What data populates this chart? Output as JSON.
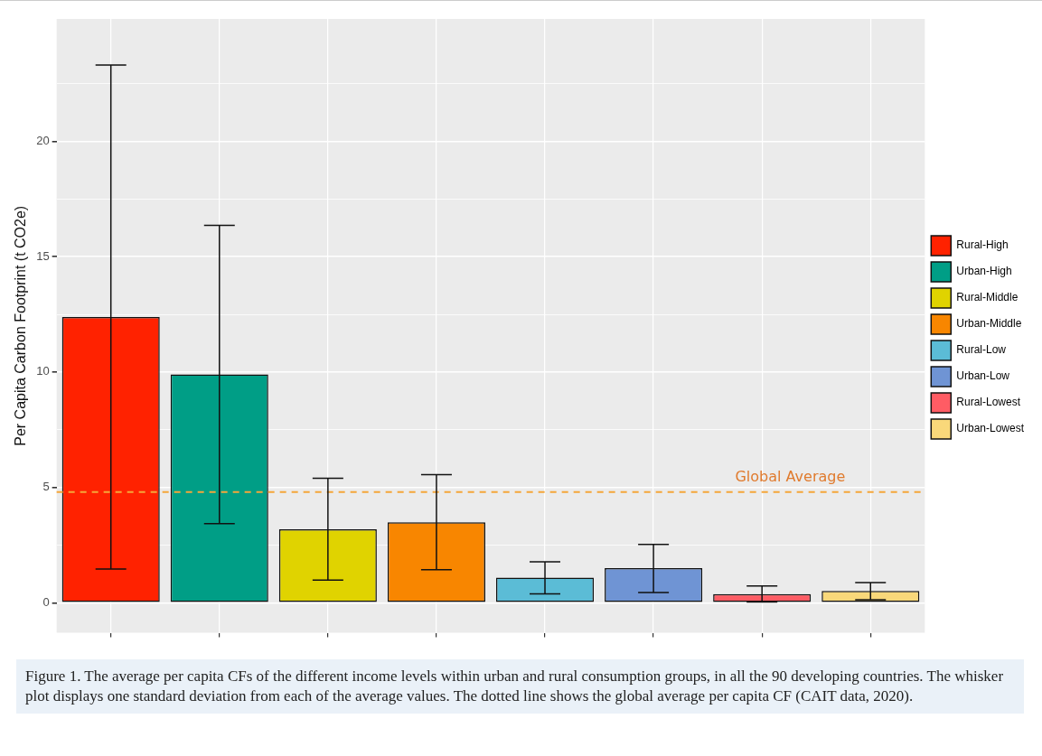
{
  "chart_data": {
    "type": "bar",
    "ylabel": "Per Capita Carbon Footprint (t CO2e)",
    "categories": [
      null,
      null,
      null,
      null,
      null,
      null,
      null,
      null
    ],
    "series": [
      {
        "name": "Rural-High",
        "color": "#ff2200",
        "values": [
          12.38,
          null,
          null,
          null,
          null,
          null,
          null,
          null
        ],
        "errors": [
          [
            1.46,
            23.3
          ],
          null,
          null,
          null,
          null,
          null,
          null,
          null
        ]
      },
      {
        "name": "Urban-High",
        "color": "#009e86",
        "values": [
          null,
          9.9,
          null,
          null,
          null,
          null,
          null,
          null
        ],
        "errors": [
          null,
          [
            3.43,
            16.36
          ],
          null,
          null,
          null,
          null,
          null,
          null
        ]
      },
      {
        "name": "Rural-Middle",
        "color": "#e0d300",
        "values": [
          null,
          null,
          3.19,
          null,
          null,
          null,
          null,
          null
        ],
        "errors": [
          null,
          null,
          [
            0.98,
            5.4
          ],
          null,
          null,
          null,
          null,
          null
        ]
      },
      {
        "name": "Urban-Middle",
        "color": "#f88600",
        "values": [
          null,
          null,
          null,
          3.49,
          null,
          null,
          null,
          null
        ],
        "errors": [
          null,
          null,
          null,
          [
            1.43,
            5.55
          ],
          null,
          null,
          null,
          null
        ]
      },
      {
        "name": "Rural-Low",
        "color": "#5bbcd6",
        "values": [
          null,
          null,
          null,
          null,
          1.09,
          null,
          null,
          null
        ],
        "errors": [
          null,
          null,
          null,
          null,
          [
            0.39,
            1.78
          ],
          null,
          null,
          null
        ]
      },
      {
        "name": "Urban-Low",
        "color": "#6f94d4",
        "values": [
          null,
          null,
          null,
          null,
          null,
          1.5,
          null,
          null
        ],
        "errors": [
          null,
          null,
          null,
          null,
          null,
          [
            0.45,
            2.53
          ],
          null,
          null
        ]
      },
      {
        "name": "Rural-Lowest",
        "color": "#ff5c64",
        "values": [
          null,
          null,
          null,
          null,
          null,
          null,
          0.38,
          null
        ],
        "errors": [
          null,
          null,
          null,
          null,
          null,
          null,
          [
            0.03,
            0.73
          ],
          null
        ]
      },
      {
        "name": "Urban-Lowest",
        "color": "#f9d87a",
        "values": [
          null,
          null,
          null,
          null,
          null,
          null,
          null,
          0.51
        ],
        "errors": [
          null,
          null,
          null,
          null,
          null,
          null,
          null,
          [
            0.13,
            0.88
          ]
        ]
      }
    ],
    "ylim": [
      -1.3,
      25.3
    ],
    "yticks": [
      0,
      {
        "value": 2.5,
        "label": null
      },
      5,
      {
        "value": 7.5,
        "label": null
      },
      10,
      {
        "value": 12.5,
        "label": null
      },
      15,
      {
        "value": 17.5,
        "label": null
      },
      20,
      {
        "value": 22.5,
        "label": null
      }
    ],
    "ref_lines": [
      {
        "axis": "y",
        "value": 4.8,
        "label": "Global Average",
        "color": "#f5a63a",
        "line_style": "dashed"
      }
    ],
    "grid": true,
    "legend": "right",
    "annotations": [
      "Figure 1. The average per capita CFs of the different income levels within urban and rural consumption groups, in all the 90 developing countries. The whisker plot displays one standard deviation from each of the average values. The dotted line shows the global average per capita CF (CAIT data, 2020)."
    ]
  }
}
